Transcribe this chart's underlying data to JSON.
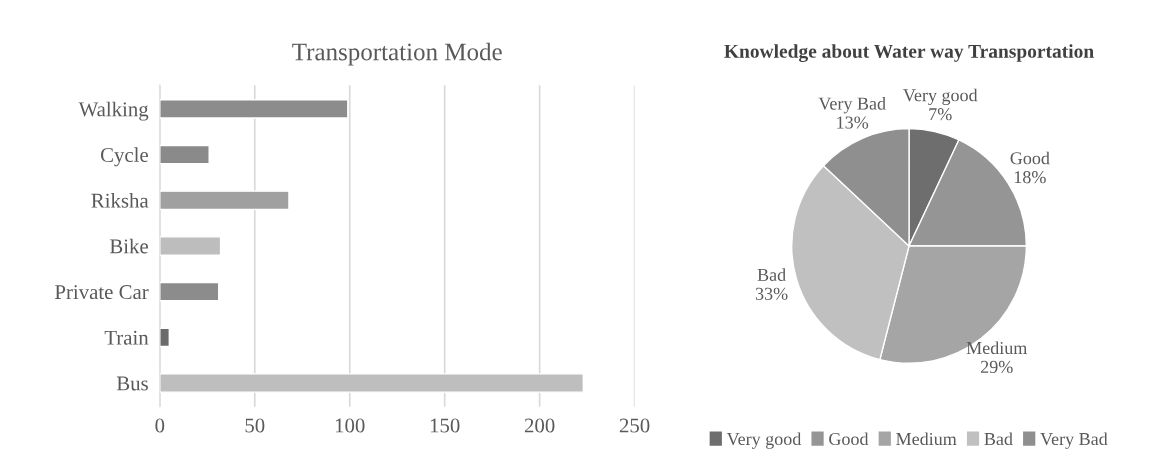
{
  "chart_data": [
    {
      "type": "bar",
      "title": "Transportation Mode",
      "orientation": "horizontal",
      "categories": [
        "Walking",
        "Cycle",
        "Riksha",
        "Bike",
        "Private Car",
        "Train",
        "Bus"
      ],
      "values": [
        99,
        26,
        68,
        32,
        31,
        5,
        223
      ],
      "colors": [
        "#8c8c8c",
        "#8a8a8a",
        "#a0a0a0",
        "#bdbdbd",
        "#8c8c8c",
        "#6b6b6b",
        "#bebebe"
      ],
      "xlim": [
        0,
        250
      ],
      "xticks": [
        0,
        50,
        100,
        150,
        200,
        250
      ],
      "grid": "x"
    },
    {
      "type": "pie",
      "title": "Knowledge about Water way Transportation",
      "categories": [
        "Very good",
        "Good",
        "Medium",
        "Bad",
        "Very Bad"
      ],
      "values": [
        7,
        18,
        29,
        33,
        13
      ],
      "colors": [
        "#6e6e6e",
        "#959595",
        "#a5a5a5",
        "#c0c0c0",
        "#8f8f8f"
      ],
      "value_labels": [
        "7%",
        "18%",
        "29%",
        "33%",
        "13%"
      ],
      "legend": "bottom"
    }
  ]
}
